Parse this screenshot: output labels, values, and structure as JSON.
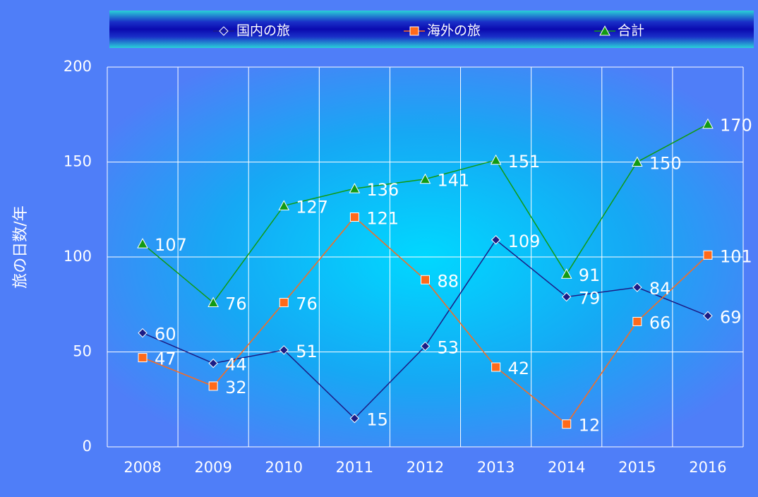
{
  "chart_data": {
    "type": "line",
    "y_label": "旅の日数/年",
    "categories": [
      "2008",
      "2009",
      "2010",
      "2011",
      "2012",
      "2013",
      "2014",
      "2015",
      "2016"
    ],
    "series": [
      {
        "name": "国内の旅",
        "color": "#1c1c84",
        "marker": "diamond",
        "values": [
          60,
          44,
          51,
          15,
          53,
          109,
          79,
          84,
          69
        ]
      },
      {
        "name": "海外の旅",
        "color": "#ff6a1a",
        "marker": "square",
        "values": [
          47,
          32,
          76,
          121,
          88,
          42,
          12,
          66,
          101
        ]
      },
      {
        "name": "合計",
        "color": "#129a12",
        "marker": "triangle",
        "values": [
          107,
          76,
          127,
          136,
          141,
          151,
          91,
          150,
          170
        ]
      }
    ],
    "ylim": [
      0,
      200
    ],
    "yticks": [
      0,
      50,
      100,
      150,
      200
    ],
    "grid": true,
    "legend": "top"
  }
}
